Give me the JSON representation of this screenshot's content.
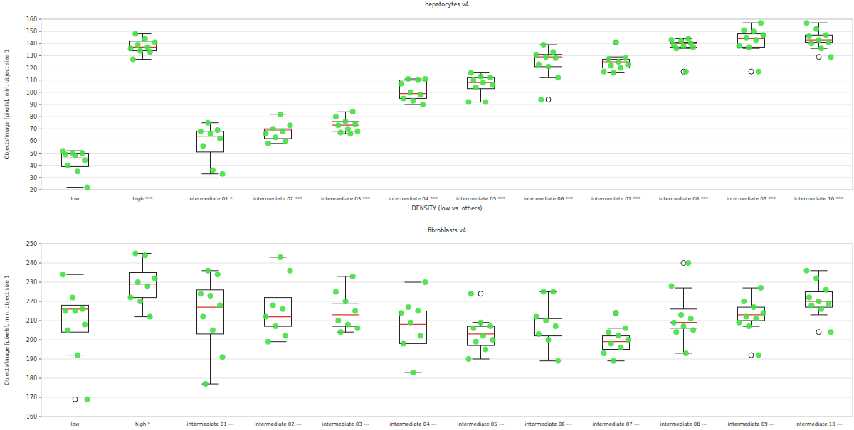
{
  "chart_data": [
    {
      "type": "box",
      "title": "hepatocytes v4",
      "x_label": "DENSITY (low vs. others)",
      "y_label": "Objects/image [pixels], min. object size 1",
      "categories": [
        "low",
        "high ***",
        "intermediate 01 *",
        "intermediate 02 ***",
        "intermediate 03 ***",
        "intermediate 04 ***",
        "intermediate 05 ***",
        "intermediate 06 ***",
        "intermediate 07 ***",
        "intermediate 08 ***",
        "intermediate 09 ***",
        "intermediate 10 ***"
      ],
      "ylim": [
        20,
        160
      ],
      "yticks": [
        20,
        30,
        40,
        50,
        60,
        70,
        80,
        90,
        100,
        110,
        120,
        130,
        140,
        150,
        160
      ],
      "grid": true,
      "color": "#44e044",
      "boxes": [
        {
          "whislo": 22,
          "q1": 39,
          "med": 46,
          "q3": 50,
          "whishi": 52,
          "fliers": [],
          "points": [
            52,
            50,
            50,
            49,
            48,
            44,
            40,
            35,
            22
          ]
        },
        {
          "whislo": 127,
          "q1": 134,
          "med": 137,
          "q3": 142,
          "whishi": 148,
          "fliers": [],
          "points": [
            148,
            144,
            141,
            139,
            137,
            136,
            134,
            133,
            127
          ]
        },
        {
          "whislo": 33,
          "q1": 51,
          "med": 64,
          "q3": 68,
          "whishi": 75,
          "fliers": [],
          "points": [
            75,
            69,
            68,
            66,
            62,
            56,
            36,
            33
          ]
        },
        {
          "whislo": 58,
          "q1": 62,
          "med": 69,
          "q3": 70,
          "whishi": 82,
          "fliers": [],
          "points": [
            82,
            73,
            70,
            68,
            66,
            63,
            60,
            58
          ]
        },
        {
          "whislo": 66,
          "q1": 68,
          "med": 73,
          "q3": 76,
          "whishi": 84,
          "fliers": [],
          "points": [
            84,
            80,
            76,
            74,
            73,
            70,
            68,
            67,
            66
          ]
        },
        {
          "whislo": 90,
          "q1": 95,
          "med": 99,
          "q3": 110,
          "whishi": 111,
          "fliers": [],
          "points": [
            111,
            111,
            110,
            107,
            100,
            98,
            95,
            93,
            90
          ]
        },
        {
          "whislo": 92,
          "q1": 103,
          "med": 108,
          "q3": 112,
          "whishi": 116,
          "fliers": [],
          "points": [
            116,
            113,
            112,
            110,
            108,
            106,
            104,
            92,
            92
          ]
        },
        {
          "whislo": 112,
          "q1": 121,
          "med": 129,
          "q3": 131,
          "whishi": 139,
          "fliers": [
            94
          ],
          "points": [
            139,
            133,
            131,
            129,
            128,
            123,
            121,
            112,
            94
          ]
        },
        {
          "whislo": 116,
          "q1": 120,
          "med": 125,
          "q3": 127,
          "whishi": 129,
          "fliers": [
            141
          ],
          "points": [
            141,
            128,
            127,
            125,
            123,
            122,
            120,
            117,
            116
          ]
        },
        {
          "whislo": 136,
          "q1": 137,
          "med": 140,
          "q3": 141,
          "whishi": 144,
          "fliers": [
            117
          ],
          "points": [
            144,
            143,
            142,
            140,
            139,
            138,
            137,
            136,
            117
          ]
        },
        {
          "whislo": 136,
          "q1": 137,
          "med": 144,
          "q3": 148,
          "whishi": 157,
          "fliers": [
            117
          ],
          "points": [
            157,
            151,
            150,
            147,
            145,
            143,
            138,
            137,
            117
          ]
        },
        {
          "whislo": 136,
          "q1": 141,
          "med": 143,
          "q3": 147,
          "whishi": 157,
          "fliers": [
            129
          ],
          "points": [
            157,
            152,
            147,
            146,
            143,
            141,
            140,
            136,
            129
          ]
        }
      ]
    },
    {
      "type": "box",
      "title": "fibroblasts v4",
      "y_label": "Objects/image [pixels], min. object size 1",
      "categories": [
        "low",
        "high *",
        "intermediate 01 ---",
        "intermediate 02 ---",
        "intermediate 03 ---",
        "intermediate 04 ---",
        "intermediate 05 ---",
        "intermediate 06 ---",
        "intermediate 07 ---",
        "intermediate 08 ---",
        "intermediate 09 ---",
        "intermediate 10 ---"
      ],
      "ylim": [
        160,
        250
      ],
      "yticks": [
        160,
        170,
        180,
        190,
        200,
        210,
        220,
        230,
        240,
        250
      ],
      "grid": true,
      "color": "#44e044",
      "boxes": [
        {
          "whislo": 192,
          "q1": 204,
          "med": 216,
          "q3": 218,
          "whishi": 234,
          "fliers": [
            169
          ],
          "points": [
            234,
            222,
            216,
            215,
            215,
            208,
            205,
            192,
            169
          ]
        },
        {
          "whislo": 212,
          "q1": 222,
          "med": 229,
          "q3": 235,
          "whishi": 245,
          "fliers": [],
          "points": [
            245,
            244,
            232,
            230,
            228,
            222,
            220,
            212
          ]
        },
        {
          "whislo": 177,
          "q1": 203,
          "med": 217,
          "q3": 226,
          "whishi": 236,
          "fliers": [],
          "points": [
            236,
            234,
            224,
            223,
            218,
            212,
            205,
            191,
            177
          ]
        },
        {
          "whislo": 199,
          "q1": 207,
          "med": 212,
          "q3": 222,
          "whishi": 243,
          "fliers": [],
          "points": [
            243,
            236,
            218,
            216,
            212,
            207,
            202,
            199
          ]
        },
        {
          "whislo": 204,
          "q1": 207,
          "med": 213,
          "q3": 219,
          "whishi": 233,
          "fliers": [],
          "points": [
            233,
            225,
            220,
            215,
            210,
            208,
            206,
            204
          ]
        },
        {
          "whislo": 183,
          "q1": 198,
          "med": 208,
          "q3": 215,
          "whishi": 230,
          "fliers": [],
          "points": [
            230,
            217,
            215,
            214,
            209,
            202,
            198,
            183
          ]
        },
        {
          "whislo": 190,
          "q1": 197,
          "med": 203,
          "q3": 207,
          "whishi": 209,
          "fliers": [
            224
          ],
          "points": [
            224,
            209,
            207,
            206,
            202,
            200,
            199,
            195,
            190
          ]
        },
        {
          "whislo": 189,
          "q1": 202,
          "med": 205,
          "q3": 211,
          "whishi": 225,
          "fliers": [],
          "points": [
            225,
            225,
            212,
            210,
            207,
            203,
            200,
            189
          ]
        },
        {
          "whislo": 189,
          "q1": 195,
          "med": 199,
          "q3": 202,
          "whishi": 206,
          "fliers": [
            214
          ],
          "points": [
            214,
            206,
            204,
            202,
            200,
            198,
            196,
            193,
            189
          ]
        },
        {
          "whislo": 193,
          "q1": 206,
          "med": 209,
          "q3": 216,
          "whishi": 227,
          "fliers": [
            240
          ],
          "points": [
            240,
            228,
            213,
            211,
            209,
            207,
            205,
            204,
            193
          ]
        },
        {
          "whislo": 207,
          "q1": 210,
          "med": 213,
          "q3": 217,
          "whishi": 227,
          "fliers": [
            192
          ],
          "points": [
            227,
            220,
            217,
            214,
            212,
            211,
            209,
            207,
            192
          ]
        },
        {
          "whislo": 213,
          "q1": 217,
          "med": 220,
          "q3": 225,
          "whishi": 236,
          "fliers": [
            204
          ],
          "points": [
            236,
            232,
            226,
            222,
            220,
            219,
            218,
            216,
            204
          ]
        }
      ]
    }
  ]
}
